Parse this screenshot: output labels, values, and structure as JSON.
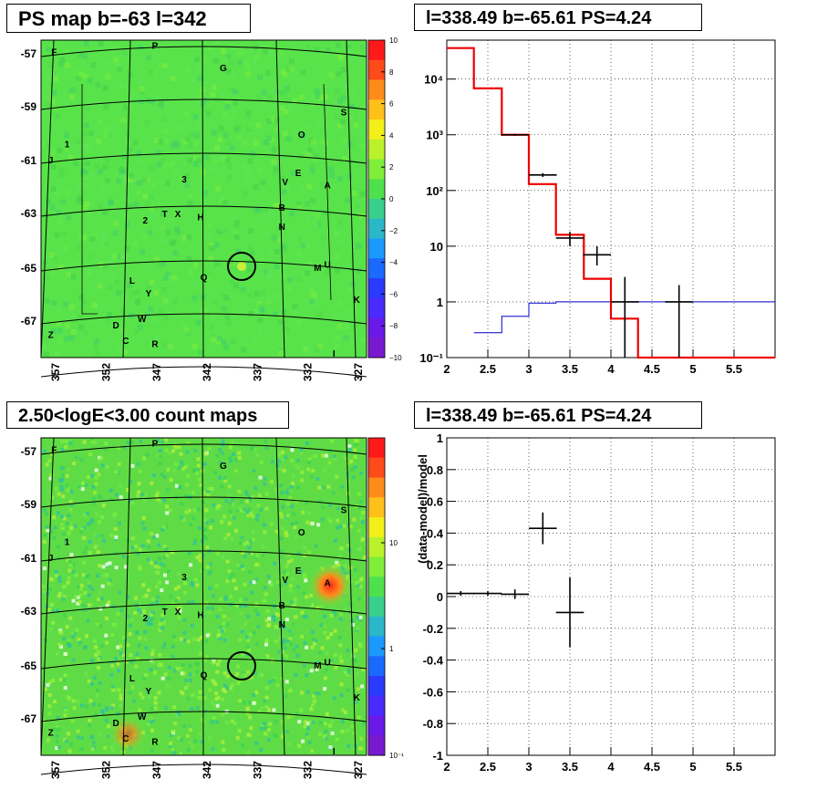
{
  "panels": {
    "ps_map": {
      "title": "PS map b=-63 l=342",
      "colorbar_ticks": [
        "10",
        "8",
        "6",
        "4",
        "2",
        "0",
        "−2",
        "−4",
        "−6",
        "−8",
        "−10"
      ]
    },
    "count_map": {
      "title": "2.50<logE<3.00 count maps",
      "colorbar_ticks": [
        "10",
        "1",
        "10⁻¹"
      ]
    },
    "spectrum": {
      "title": "l=338.49 b=-65.61 PS=4.24"
    },
    "residual": {
      "title": "l=338.49 b=-65.61 PS=4.24"
    }
  },
  "map_axes": {
    "lat_labels": [
      "-57",
      "-59",
      "-61",
      "-63",
      "-65",
      "-67"
    ],
    "lon_labels": [
      "357",
      "352",
      "347",
      "342",
      "337",
      "332",
      "327"
    ],
    "sources": [
      {
        "label": "P",
        "u": 0.35,
        "v": 0.02
      },
      {
        "label": "G",
        "u": 0.56,
        "v": 0.09
      },
      {
        "label": "F",
        "u": 0.04,
        "v": 0.04
      },
      {
        "label": "S",
        "u": 0.93,
        "v": 0.23
      },
      {
        "label": "O",
        "u": 0.8,
        "v": 0.3
      },
      {
        "label": "1",
        "u": 0.08,
        "v": 0.33
      },
      {
        "label": "J",
        "u": 0.03,
        "v": 0.38
      },
      {
        "label": "3",
        "u": 0.44,
        "v": 0.44
      },
      {
        "label": "E",
        "u": 0.79,
        "v": 0.42
      },
      {
        "label": "V",
        "u": 0.75,
        "v": 0.45
      },
      {
        "label": "A",
        "u": 0.88,
        "v": 0.46
      },
      {
        "label": "B",
        "u": 0.74,
        "v": 0.53
      },
      {
        "label": "T",
        "u": 0.38,
        "v": 0.55
      },
      {
        "label": "X",
        "u": 0.42,
        "v": 0.55
      },
      {
        "label": "2",
        "u": 0.32,
        "v": 0.57
      },
      {
        "label": "H",
        "u": 0.49,
        "v": 0.56
      },
      {
        "label": "N",
        "u": 0.74,
        "v": 0.59
      },
      {
        "label": "M",
        "u": 0.85,
        "v": 0.72
      },
      {
        "label": "U",
        "u": 0.88,
        "v": 0.71
      },
      {
        "label": "L",
        "u": 0.28,
        "v": 0.76
      },
      {
        "label": "Q",
        "u": 0.5,
        "v": 0.75
      },
      {
        "label": "Y",
        "u": 0.33,
        "v": 0.8
      },
      {
        "label": "K",
        "u": 0.97,
        "v": 0.82
      },
      {
        "label": "W",
        "u": 0.31,
        "v": 0.88
      },
      {
        "label": "D",
        "u": 0.23,
        "v": 0.9
      },
      {
        "label": "Z",
        "u": 0.03,
        "v": 0.93
      },
      {
        "label": "C",
        "u": 0.26,
        "v": 0.95
      },
      {
        "label": "R",
        "u": 0.35,
        "v": 0.96
      },
      {
        "label": "I",
        "u": 0.9,
        "v": 0.99
      }
    ]
  },
  "chart_data": [
    {
      "type": "line",
      "title": "l=338.49 b=-65.61 PS=4.24",
      "xlabel": "",
      "ylabel": "",
      "xlim": [
        2,
        6
      ],
      "ylim": [
        0.1,
        50000
      ],
      "yscale": "log",
      "x_ticks": [
        "2",
        "2.5",
        "3",
        "3.5",
        "4",
        "4.5",
        "5",
        "5.5"
      ],
      "y_ticks": [
        "10⁻¹",
        "1",
        "10",
        "10²",
        "10³",
        "10⁴"
      ],
      "grid": true,
      "model_red_steps": {
        "edges": [
          2,
          2.33,
          2.67,
          3,
          3.33,
          3.67,
          4,
          4.33,
          4.67,
          5,
          5.33,
          5.67,
          6
        ],
        "values": [
          36000,
          6800,
          1000,
          130,
          16,
          2.6,
          0.5,
          0.1,
          0.1,
          0.1,
          0.1,
          0.1
        ]
      },
      "model_blue_steps": {
        "edges": [
          2.33,
          2.67,
          3,
          3.33,
          3.67,
          4,
          4.33,
          4.67,
          5,
          5.33,
          5.67,
          6
        ],
        "values": [
          0.28,
          0.55,
          0.95,
          1.0,
          1.0,
          1.0,
          1.0,
          1.0,
          1.0,
          1.0,
          1.0
        ]
      },
      "data_points": [
        {
          "x": 2.83,
          "y": 1000,
          "xerr": 0.17,
          "ylo": 960,
          "yhi": 1040
        },
        {
          "x": 3.17,
          "y": 190,
          "xerr": 0.17,
          "ylo": 175,
          "yhi": 205
        },
        {
          "x": 3.5,
          "y": 14,
          "xerr": 0.17,
          "ylo": 10,
          "yhi": 18
        },
        {
          "x": 3.83,
          "y": 7,
          "xerr": 0.17,
          "ylo": 4.5,
          "yhi": 10
        },
        {
          "x": 4.17,
          "y": 1,
          "xerr": 0.17,
          "ylo": 0.1,
          "yhi": 2.8
        },
        {
          "x": 4.83,
          "y": 1,
          "xerr": 0.17,
          "ylo": 0.1,
          "yhi": 2.0
        }
      ]
    },
    {
      "type": "scatter",
      "title": "l=338.49 b=-65.61 PS=4.24",
      "xlabel": "",
      "ylabel": "(data-model)/model",
      "xlim": [
        2,
        6
      ],
      "ylim": [
        -1,
        1
      ],
      "x_ticks": [
        "2",
        "2.5",
        "3",
        "3.5",
        "4",
        "4.5",
        "5",
        "5.5"
      ],
      "y_ticks": [
        "-1",
        "-0.8",
        "-0.6",
        "-0.4",
        "-0.2",
        "0",
        "0.2",
        "0.4",
        "0.6",
        "0.8",
        "1"
      ],
      "grid": true,
      "points": [
        {
          "x": 2.17,
          "y": 0.02,
          "xerr": 0.17,
          "yerr": 0.015
        },
        {
          "x": 2.5,
          "y": 0.02,
          "xerr": 0.17,
          "yerr": 0.015
        },
        {
          "x": 2.83,
          "y": 0.015,
          "xerr": 0.17,
          "yerr": 0.03
        },
        {
          "x": 3.17,
          "y": 0.43,
          "xerr": 0.17,
          "yerr": 0.1
        },
        {
          "x": 3.5,
          "y": -0.1,
          "xerr": 0.17,
          "yerr": 0.22
        }
      ]
    }
  ]
}
